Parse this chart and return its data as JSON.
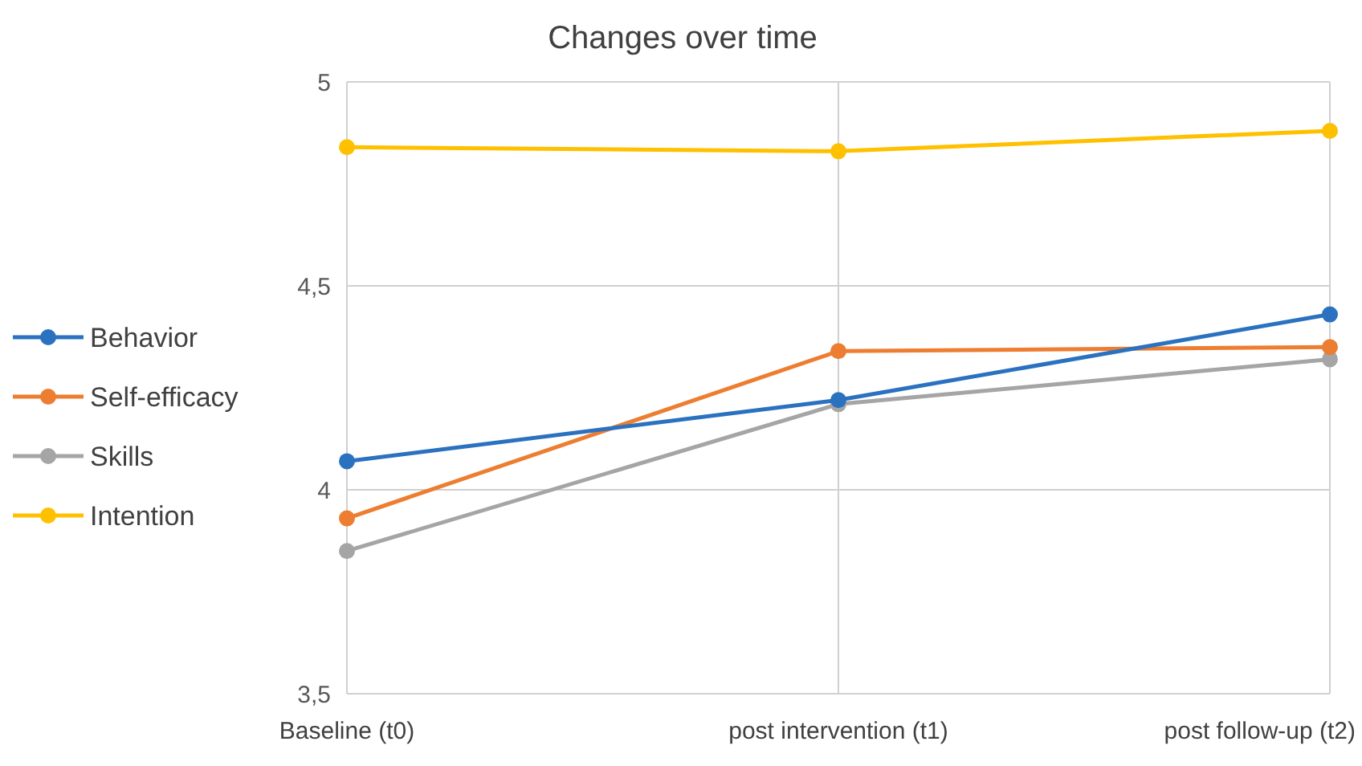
{
  "chart_data": {
    "type": "line",
    "title": "Changes over time",
    "categories": [
      "Baseline (t0)",
      "post intervention (t1)",
      "post follow-up (t2)"
    ],
    "series": [
      {
        "name": "Behavior",
        "color": "#2a72c0",
        "values": [
          4.07,
          4.22,
          4.43
        ]
      },
      {
        "name": "Self-efficacy",
        "color": "#ed7d31",
        "values": [
          3.93,
          4.34,
          4.35
        ]
      },
      {
        "name": "Skills",
        "color": "#a5a5a5",
        "values": [
          3.85,
          4.21,
          4.32
        ]
      },
      {
        "name": "Intention",
        "color": "#ffc000",
        "values": [
          4.84,
          4.83,
          4.88
        ]
      }
    ],
    "ylim": [
      3.5,
      5
    ],
    "yticks": [
      {
        "value": 3.5,
        "label": "3,5"
      },
      4,
      {
        "value": 4.5,
        "label": "4,5"
      },
      5
    ],
    "grid": true,
    "legend": "left",
    "marker": "circle",
    "line_style": "solid"
  }
}
